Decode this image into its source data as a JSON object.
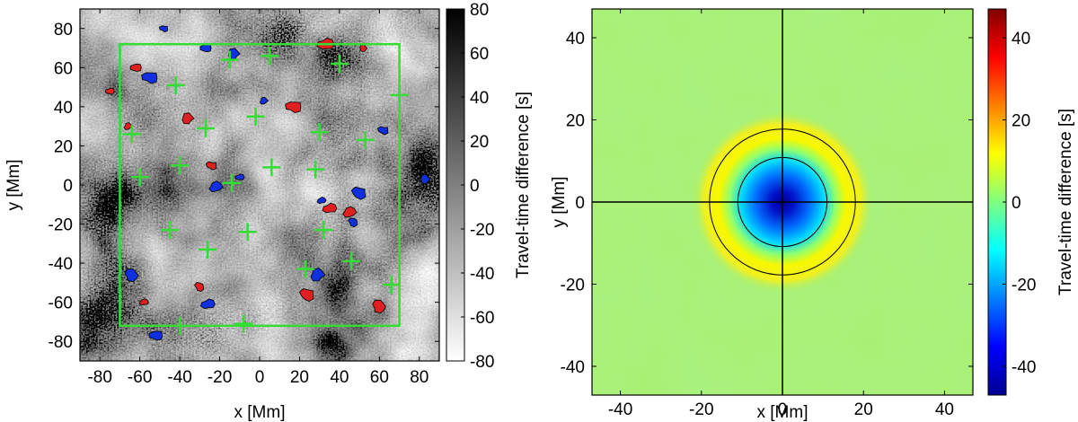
{
  "chart_data": [
    {
      "type": "heatmap",
      "panel": "left",
      "xlabel": "x [Mm]",
      "ylabel": "y [Mm]",
      "xlim": [
        -90,
        90
      ],
      "ylim": [
        -90,
        90
      ],
      "xticks": [
        -80,
        -60,
        -40,
        -20,
        0,
        20,
        40,
        60,
        80
      ],
      "yticks": [
        -80,
        -60,
        -40,
        -20,
        0,
        20,
        40,
        60,
        80
      ],
      "colorscale": "grayscale (white = -80, black = 80)",
      "colorbar": {
        "label": "Travel-time difference [s]",
        "range": [
          -80,
          80
        ],
        "ticks": [
          -80,
          -60,
          -40,
          -20,
          0,
          20,
          40,
          60,
          80
        ]
      },
      "box_color": "#33dd33",
      "box": {
        "x": [
          -70,
          70
        ],
        "y": [
          -72,
          72
        ]
      },
      "plus_markers": [
        {
          "x": 5,
          "y": 66
        },
        {
          "x": -15,
          "y": 64
        },
        {
          "x": 40,
          "y": 62
        },
        {
          "x": -42,
          "y": 51
        },
        {
          "x": 70,
          "y": 46
        },
        {
          "x": -2,
          "y": 35
        },
        {
          "x": -27,
          "y": 29
        },
        {
          "x": 30,
          "y": 27
        },
        {
          "x": -64,
          "y": 26
        },
        {
          "x": 53,
          "y": 23
        },
        {
          "x": -40,
          "y": 10
        },
        {
          "x": 6,
          "y": 9
        },
        {
          "x": 28,
          "y": 8
        },
        {
          "x": -60,
          "y": 4
        },
        {
          "x": -14,
          "y": 1
        },
        {
          "x": -45,
          "y": -23
        },
        {
          "x": -6,
          "y": -24
        },
        {
          "x": 32,
          "y": -23
        },
        {
          "x": -26,
          "y": -33
        },
        {
          "x": 23,
          "y": -43
        },
        {
          "x": 46,
          "y": -39
        },
        {
          "x": 66,
          "y": -51
        },
        {
          "x": -8,
          "y": -71
        },
        {
          "x": -40,
          "y": -72
        }
      ],
      "red_patch_color": "#e02020",
      "blue_patch_color": "#1030e0",
      "red_patches": [
        {
          "x": 33,
          "y": 72
        },
        {
          "x": 52,
          "y": 70
        },
        {
          "x": -62,
          "y": 60
        },
        {
          "x": -36,
          "y": 34
        },
        {
          "x": 17,
          "y": 40
        },
        {
          "x": -66,
          "y": 30
        },
        {
          "x": -24,
          "y": 10
        },
        {
          "x": 45,
          "y": -14
        },
        {
          "x": 24,
          "y": -56
        },
        {
          "x": -58,
          "y": -60
        },
        {
          "x": -30,
          "y": -52
        },
        {
          "x": 35,
          "y": -12
        },
        {
          "x": 60,
          "y": -62
        },
        {
          "x": -75,
          "y": 48
        }
      ],
      "blue_patches": [
        {
          "x": -27,
          "y": 70
        },
        {
          "x": -13,
          "y": 67
        },
        {
          "x": -55,
          "y": 55
        },
        {
          "x": 2,
          "y": 43
        },
        {
          "x": 62,
          "y": 28
        },
        {
          "x": -22,
          "y": -1
        },
        {
          "x": 50,
          "y": -4
        },
        {
          "x": 31,
          "y": -8
        },
        {
          "x": 47,
          "y": -19
        },
        {
          "x": -26,
          "y": -61
        },
        {
          "x": -64,
          "y": -46
        },
        {
          "x": -10,
          "y": 4
        },
        {
          "x": 83,
          "y": 3
        },
        {
          "x": -52,
          "y": -77
        },
        {
          "x": 29,
          "y": -46
        },
        {
          "x": -48,
          "y": 80
        }
      ]
    },
    {
      "type": "heatmap",
      "panel": "right",
      "xlabel": "x [Mm]",
      "ylabel": "y [Mm]",
      "xlim": [
        -47,
        47
      ],
      "ylim": [
        -47,
        47
      ],
      "xticks": [
        -40,
        -20,
        0,
        20,
        40
      ],
      "yticks": [
        -40,
        -20,
        0,
        20,
        40
      ],
      "colorscale": "jet",
      "colorbar": {
        "label": "Travel-time difference [s]",
        "range": [
          -47,
          47
        ],
        "ticks": [
          -40,
          -20,
          0,
          20,
          40
        ]
      },
      "background_value": 3,
      "center_minimum": -47,
      "ring_maximum": 12,
      "contour_radii": [
        11,
        18
      ],
      "crosshair": {
        "x": 0,
        "y": 0
      }
    }
  ]
}
